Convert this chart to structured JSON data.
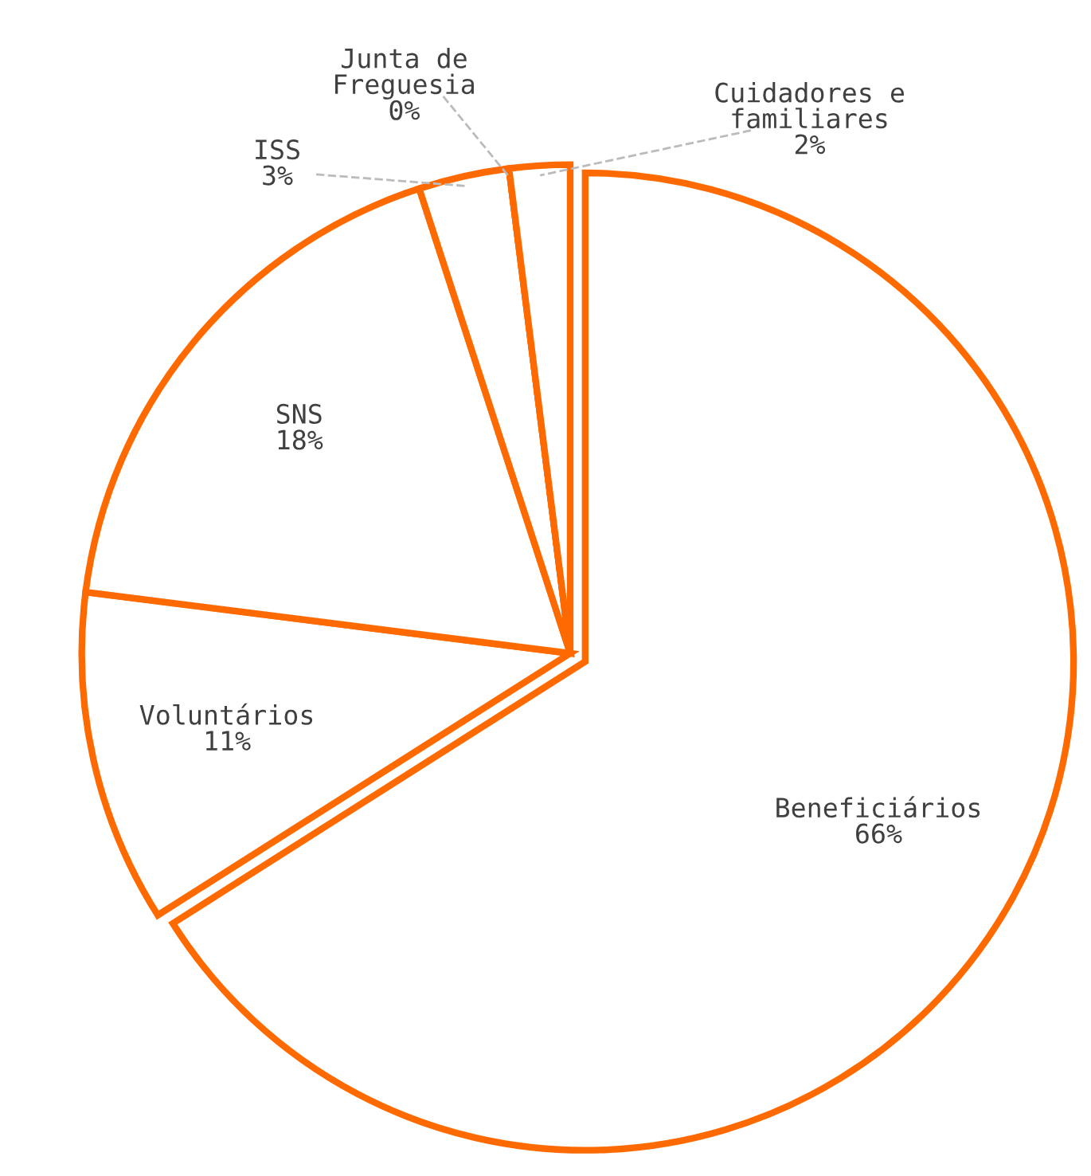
{
  "chart_data": {
    "type": "pie",
    "categories": [
      "Beneficiários",
      "Voluntários",
      "SNS",
      "ISS",
      "Junta de\nFreguesia",
      "Cuidadores e\nfamiliares"
    ],
    "values": [
      66,
      11,
      18,
      3,
      0,
      2
    ],
    "colors": [
      "#ff6a00",
      "#ff6a00",
      "#ff6a00",
      "#ff6a00",
      "#ff6a00",
      "#ff6a00"
    ],
    "value_labels": [
      "66%",
      "11%",
      "18%",
      "3%",
      "0%",
      "2%"
    ],
    "legend": false
  }
}
